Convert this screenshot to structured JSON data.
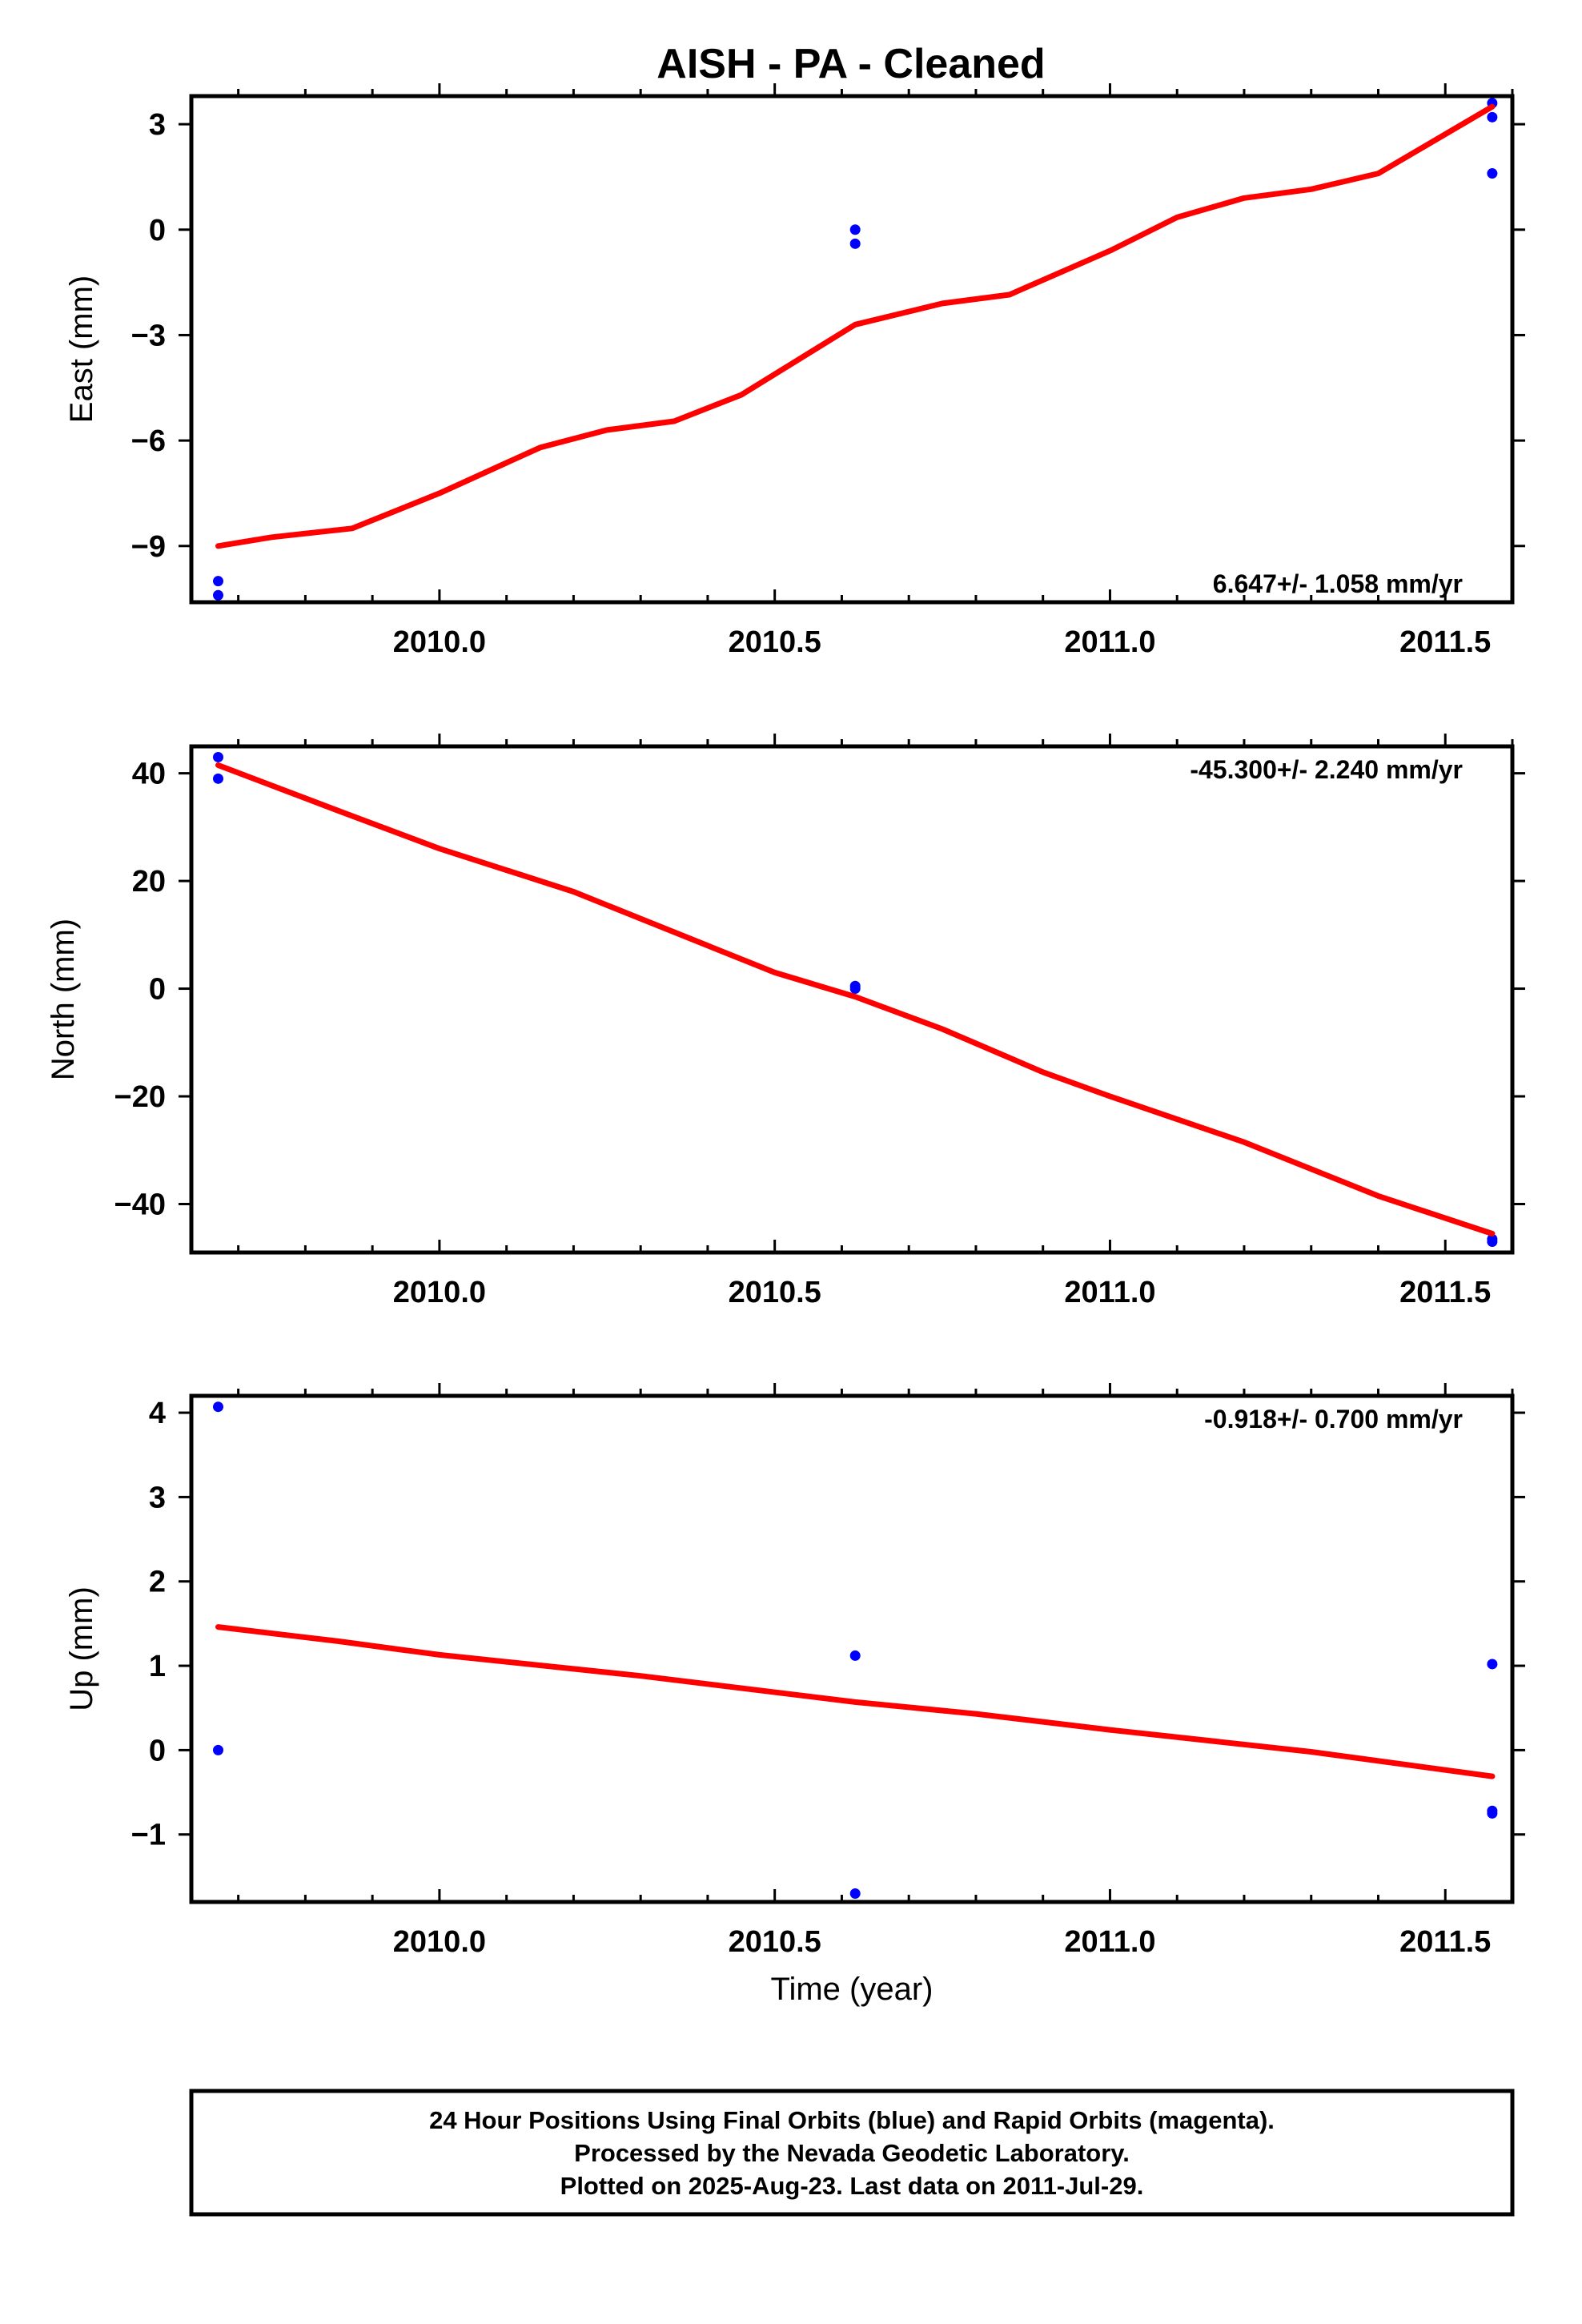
{
  "title": "AISH  - PA - Cleaned",
  "colors": {
    "final_orbits": "#0000ff",
    "trend_line": "#ff0000",
    "frame": "#000000"
  },
  "chart_data": [
    {
      "type": "scatter",
      "id": "east",
      "ylabel": "East (mm)",
      "xlabel": "",
      "xlim": [
        2009.63,
        2011.6
      ],
      "ylim": [
        -10.6,
        3.8
      ],
      "xticks": [
        2010.0,
        2010.5,
        2011.0,
        2011.5
      ],
      "xtick_labels": [
        "2010.0",
        "2010.5",
        "2011.0",
        "2011.5"
      ],
      "yticks": [
        -9,
        -6,
        -3,
        0,
        3
      ],
      "ytick_labels": [
        "−9",
        "−6",
        "−3",
        "0",
        "3"
      ],
      "rate": "6.647+/- 1.058 mm/yr",
      "rate_position": "bottom-right",
      "series": [
        {
          "kind": "points",
          "x": [
            2009.67,
            2009.67,
            2010.62,
            2010.62,
            2011.57,
            2011.57,
            2011.57
          ],
          "y": [
            -10.0,
            -10.4,
            0.0,
            -0.4,
            3.6,
            3.2,
            1.6
          ]
        },
        {
          "kind": "line",
          "x": [
            2009.67,
            2009.75,
            2009.87,
            2010.0,
            2010.15,
            2010.25,
            2010.35,
            2010.45,
            2010.62,
            2010.75,
            2010.85,
            2011.0,
            2011.1,
            2011.2,
            2011.3,
            2011.4,
            2011.57
          ],
          "y": [
            -9.0,
            -8.75,
            -8.5,
            -7.5,
            -6.2,
            -5.7,
            -5.45,
            -4.7,
            -2.7,
            -2.1,
            -1.85,
            -0.6,
            0.35,
            0.9,
            1.15,
            1.6,
            3.5
          ]
        }
      ]
    },
    {
      "type": "scatter",
      "id": "north",
      "ylabel": "North (mm)",
      "xlabel": "",
      "xlim": [
        2009.63,
        2011.6
      ],
      "ylim": [
        -49,
        45
      ],
      "xticks": [
        2010.0,
        2010.5,
        2011.0,
        2011.5
      ],
      "xtick_labels": [
        "2010.0",
        "2010.5",
        "2011.0",
        "2011.5"
      ],
      "yticks": [
        -40,
        -20,
        0,
        20,
        40
      ],
      "ytick_labels": [
        "−40",
        "−20",
        "0",
        "20",
        "40"
      ],
      "rate": "-45.300+/- 2.240 mm/yr",
      "rate_position": "top-right",
      "series": [
        {
          "kind": "points",
          "x": [
            2009.67,
            2009.67,
            2010.62,
            2010.62,
            2011.57,
            2011.57
          ],
          "y": [
            43,
            39,
            0.5,
            0,
            -46.5,
            -47
          ]
        },
        {
          "kind": "line",
          "x": [
            2009.67,
            2009.85,
            2010.0,
            2010.2,
            2010.4,
            2010.5,
            2010.62,
            2010.75,
            2010.9,
            2011.0,
            2011.2,
            2011.4,
            2011.57
          ],
          "y": [
            41.5,
            33.0,
            26.0,
            18.0,
            8.0,
            3.0,
            -1.5,
            -7.5,
            -15.5,
            -20.0,
            -28.5,
            -38.5,
            -45.5
          ]
        }
      ]
    },
    {
      "type": "scatter",
      "id": "up",
      "ylabel": "Up (mm)",
      "xlabel": "Time (year)",
      "xlim": [
        2009.63,
        2011.6
      ],
      "ylim": [
        -1.8,
        4.2
      ],
      "xticks": [
        2010.0,
        2010.5,
        2011.0,
        2011.5
      ],
      "xtick_labels": [
        "2010.0",
        "2010.5",
        "2011.0",
        "2011.5"
      ],
      "yticks": [
        -1,
        0,
        1,
        2,
        3,
        4
      ],
      "ytick_labels": [
        "−1",
        "0",
        "1",
        "2",
        "3",
        "4"
      ],
      "rate": "-0.918+/- 0.700 mm/yr",
      "rate_position": "top-right",
      "series": [
        {
          "kind": "points",
          "x": [
            2009.67,
            2009.67,
            2010.62,
            2010.62,
            2011.57,
            2011.57,
            2011.57
          ],
          "y": [
            4.07,
            0.0,
            1.12,
            -1.7,
            1.02,
            -0.72,
            -0.75
          ]
        },
        {
          "kind": "line",
          "x": [
            2009.67,
            2009.85,
            2010.0,
            2010.3,
            2010.62,
            2010.8,
            2011.0,
            2011.3,
            2011.57
          ],
          "y": [
            1.46,
            1.29,
            1.13,
            0.88,
            0.57,
            0.43,
            0.24,
            -0.02,
            -0.31
          ]
        }
      ]
    }
  ],
  "footer": {
    "line1": "24 Hour Positions Using Final Orbits (blue) and Rapid Orbits (magenta).",
    "line2": "Processed by the Nevada Geodetic Laboratory.",
    "line3": "Plotted on 2025-Aug-23. Last data on 2011-Jul-29."
  }
}
